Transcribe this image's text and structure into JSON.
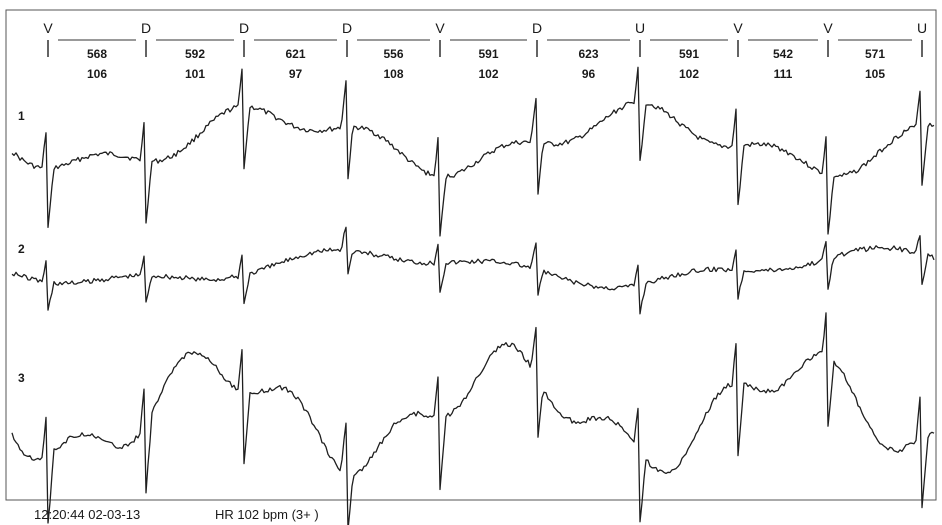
{
  "chart_data": {
    "type": "line",
    "beats": [
      {
        "label": "V"
      },
      {
        "label": "D"
      },
      {
        "label": "D"
      },
      {
        "label": "D"
      },
      {
        "label": "V"
      },
      {
        "label": "D"
      },
      {
        "label": "U"
      },
      {
        "label": "V"
      },
      {
        "label": "V"
      },
      {
        "label": "U"
      }
    ],
    "rr_intervals": [
      {
        "interval": "568",
        "rate": "106"
      },
      {
        "interval": "592",
        "rate": "101"
      },
      {
        "interval": "621",
        "rate": "97"
      },
      {
        "interval": "556",
        "rate": "108"
      },
      {
        "interval": "591",
        "rate": "102"
      },
      {
        "interval": "623",
        "rate": "96"
      },
      {
        "interval": "591",
        "rate": "102"
      },
      {
        "interval": "542",
        "rate": "111"
      },
      {
        "interval": "571",
        "rate": "105"
      }
    ],
    "leads": [
      {
        "name": "1"
      },
      {
        "name": "2"
      },
      {
        "name": "3"
      }
    ]
  },
  "footer": {
    "timestamp": "12:20:44 02-03-13",
    "heart_rate": "HR 102 bpm (3+ )"
  }
}
